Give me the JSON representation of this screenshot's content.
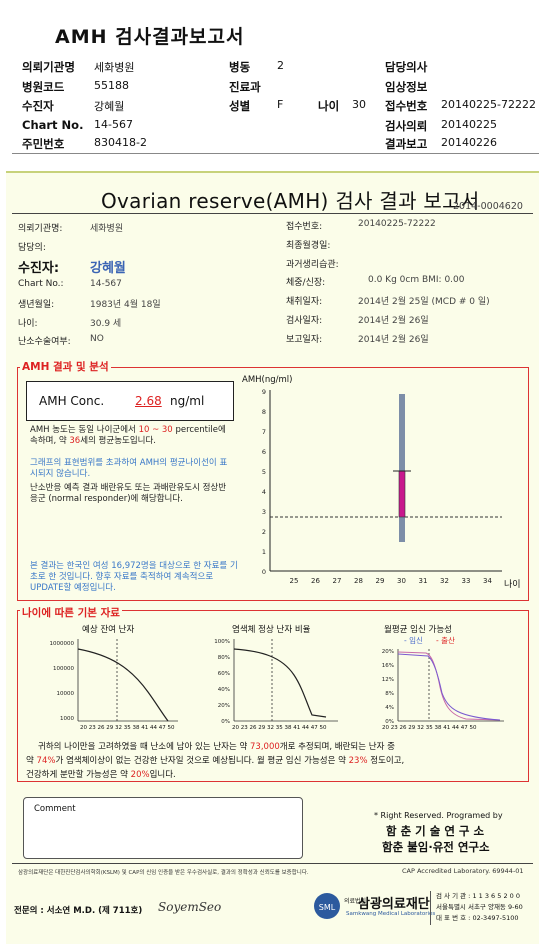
{
  "header": {
    "title": "AMH 검사결과보고서",
    "rows": [
      [
        {
          "label": "의뢰기관명",
          "value": "세화병원"
        },
        {
          "label": "병동",
          "value": "2"
        },
        {
          "label": "담당의사",
          "value": ""
        }
      ],
      [
        {
          "label": "병원코드",
          "value": "55188"
        },
        {
          "label": "진료과",
          "value": ""
        },
        {
          "label": "임상정보",
          "value": ""
        }
      ],
      [
        {
          "label": "수진자",
          "value": "강혜월"
        },
        {
          "label": "성별",
          "value": "F"
        },
        {
          "label": "나이",
          "value": "30"
        },
        {
          "label": "접수번호",
          "value": "20140225-72222"
        }
      ],
      [
        {
          "label": "Chart No.",
          "value": "14-567"
        },
        {
          "label": "검사의뢰",
          "value": "20140225"
        }
      ],
      [
        {
          "label": "주민번호",
          "value": "830418-2"
        },
        {
          "label": "결과보고",
          "value": "20140226"
        }
      ]
    ]
  },
  "report": {
    "title": "Ovarian reserve(AMH) 검사 결과 보고서",
    "code": "2014-0004620",
    "left_fields": [
      {
        "label": "의뢰기관명:",
        "value": "세화병원"
      },
      {
        "label": "담당의:",
        "value": ""
      },
      {
        "label": "수진자:",
        "value": "강혜월"
      },
      {
        "label": "Chart No.:",
        "value": "14-567"
      },
      {
        "label": "생년월일:",
        "value": "1983년 4월 18일"
      },
      {
        "label": "나이:",
        "value": "30.9 세"
      },
      {
        "label": "난소수술여부:",
        "value": "NO"
      }
    ],
    "right_fields": [
      {
        "label": "접수번호:",
        "value": "20140225-72222"
      },
      {
        "label": "최종월경일:",
        "value": ""
      },
      {
        "label": "과거생리습관:",
        "value": ""
      },
      {
        "label": "체중/신장:",
        "value": "0.0 Kg        0cm     BMI:  0.00"
      },
      {
        "label": "채취일자:",
        "value": "2014년 2월 25일   (MCD # 0 일)"
      },
      {
        "label": "검사일자:",
        "value": "2014년 2월 26일"
      },
      {
        "label": "보고일자:",
        "value": "2014년 2월 26일"
      }
    ],
    "amh_section": {
      "heading": "AMH 결과 및 분석",
      "conc_label": "AMH Conc.",
      "conc_value": "2.68",
      "conc_unit": "ng/ml",
      "p1_a": "AMH 농도는 동일 나이군에서",
      "p1_range": "10 ~ 30",
      "p1_b": "percentile에 속하며, 약",
      "p1_age": "36",
      "p1_c": "세의 평균농도입니다.",
      "p2": "그래프의 표현범위를 초과하여 AMH의 평균나이선이 표시되지 않습니다.",
      "p3": "난소반응 예측 결과 배란유도 또는 과배란유도시 정상반응군 (normal responder)에 해당합니다.",
      "p4": "본 결과는 한국인 여성 16,972명을 대상으로 한 자료를 기초로 한 것입니다. 향후 자료를 축적하여 계속적으로 UPDATE할 예정입니다."
    },
    "amh_chart": {
      "ylabel": "AMH(ng/ml)",
      "y_ticks": [
        "0",
        "1",
        "2",
        "3",
        "4",
        "5",
        "6",
        "7",
        "8",
        "9"
      ],
      "x_ticks": [
        "25",
        "26",
        "27",
        "28",
        "29",
        "30",
        "31",
        "32",
        "33",
        "34"
      ],
      "xlabel": "나이"
    },
    "ref_section": {
      "heading": "나이에 따른 기본 자료",
      "c1_title": "예상 잔여 난자",
      "c1_y": [
        "1000000",
        "100000",
        "10000",
        "1000"
      ],
      "c2_title": "염색체 정상 난자 비율",
      "c2_y": [
        "100%",
        "80%",
        "60%",
        "40%",
        "20%",
        "0%"
      ],
      "c3_title": "월평균 임신 가능성",
      "c3_legend1": "- 임신",
      "c3_legend2": "- 출산",
      "c3_y": [
        "20%",
        "16%",
        "12%",
        "8%",
        "4%",
        "0%"
      ],
      "x_axis": "20 23 26 29 32 35 38 41 44 47 50",
      "s1": "귀하의 나이만을 고려하였을 때 난소에 남아 있는 난자는 약",
      "s1_val": "73,000",
      "s1b": "개로 추정되며, 배란되는 난자 중",
      "s2a": "약",
      "s2_val": "74%",
      "s2b": "가 염색체이상이 없는 건강한 난자일 것으로 예상됩니다. 월 평균 임신 가능성은 약",
      "s2_val2": "23%",
      "s2c": "정도이고,",
      "s3a": "건강하게 분만할 가능성은 약",
      "s3_val": "20%",
      "s3b": "입니다."
    },
    "comment_label": "Comment",
    "rights": "* Right Reserved. Programed by",
    "lab1": "함 춘 기 술 연 구 소",
    "lab2": "함춘 불임·유전 연구소",
    "cert_note": "삼광의료재단은 대한진단검사의학회(KSLM) 및 CAP의 신임 인증을 받은 우수검사실로, 결과의 정확성과 신뢰도를 보증합니다.",
    "cap_note": "CAP Accredited Laboratory. 69944-01",
    "doctor": "전문의 : 서소연 M.D. (제 711호)",
    "signature": "SoyemSeo",
    "org_badge": "의료법인",
    "org_name": "삼광의료재단",
    "org_en": "Samkwang Medical Laboratories",
    "info1": "검 사 기 관 : 1 1 3 6 5 2 0 0",
    "info2": "서울특별시 서초구 양재동 9-60",
    "info3": "대 표 번 호 : 02-3497-5100",
    "colors": {
      "accent_red": "#d22222",
      "accent_blue": "#3a64b4",
      "bar_fill": "#c8188c",
      "paper": "#fbfde9"
    }
  }
}
